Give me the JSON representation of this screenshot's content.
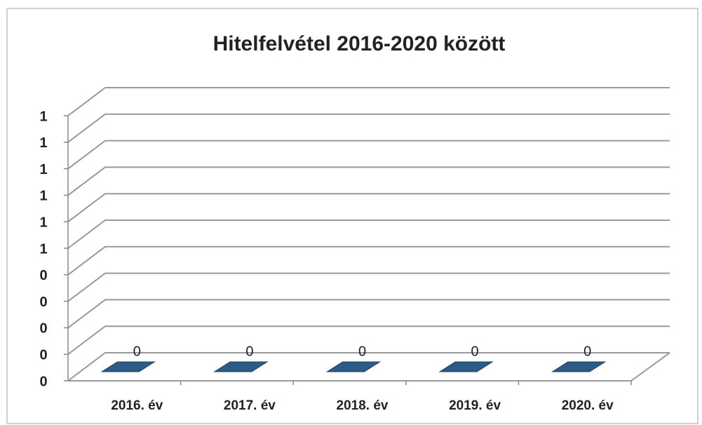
{
  "chart_data": {
    "type": "bar3d",
    "title": "Hitelfelvétel 2016-2020 között",
    "categories": [
      "2016. év",
      "2017. év",
      "2018. év",
      "2019. év",
      "2020. év"
    ],
    "values": [
      0,
      0,
      0,
      0,
      0
    ],
    "color": "#2b5b86",
    "ylim": [
      0,
      1
    ],
    "yticks": [
      {
        "value": 0,
        "label": "0"
      },
      {
        "value": 0.1,
        "label": "0"
      },
      {
        "value": 0.2,
        "label": "0"
      },
      {
        "value": 0.3,
        "label": "0"
      },
      {
        "value": 0.4,
        "label": "0"
      },
      {
        "value": 0.5,
        "label": "1"
      },
      {
        "value": 0.6,
        "label": "1"
      },
      {
        "value": 0.7,
        "label": "1"
      },
      {
        "value": 0.8,
        "label": "1"
      },
      {
        "value": 0.9,
        "label": "1"
      },
      {
        "value": 1,
        "label": "1"
      }
    ],
    "grid": true
  }
}
